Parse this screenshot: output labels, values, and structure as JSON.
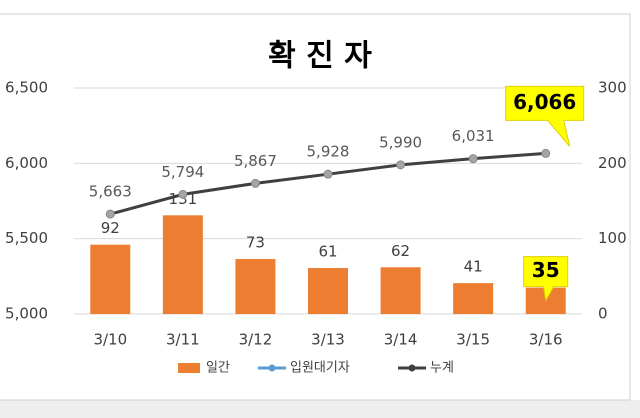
{
  "chart_data": {
    "type": "combo",
    "title": "확 진 자",
    "categories": [
      "3/10",
      "3/11",
      "3/12",
      "3/13",
      "3/14",
      "3/15",
      "3/16"
    ],
    "series": [
      {
        "name": "일간",
        "type": "bar",
        "axis": "y2",
        "color": "#ed7d31",
        "values": [
          92,
          131,
          73,
          61,
          62,
          41,
          35
        ]
      },
      {
        "name": "입원대기자",
        "type": "line",
        "color": "#5b9bd5",
        "values": [
          null,
          null,
          null,
          null,
          null,
          null,
          null
        ]
      },
      {
        "name": "누계",
        "type": "line",
        "color": "#404040",
        "values": [
          5663,
          5794,
          5867,
          5928,
          5990,
          6031,
          6066
        ],
        "value_labels": [
          "5,663",
          "5,794",
          "5,867",
          "5,928",
          "5,990",
          "6,031",
          "6,066"
        ]
      }
    ],
    "ylim": [
      5000,
      6500
    ],
    "yticks": [
      {
        "value": 5000,
        "label": "5,000"
      },
      {
        "value": 5500,
        "label": "5,500"
      },
      {
        "value": 6000,
        "label": "6,000"
      },
      {
        "value": 6500,
        "label": "6,500"
      }
    ],
    "y2lim": [
      0,
      300
    ],
    "y2ticks": [
      0,
      100,
      200,
      300
    ],
    "grid": true,
    "legend": "bottom"
  }
}
